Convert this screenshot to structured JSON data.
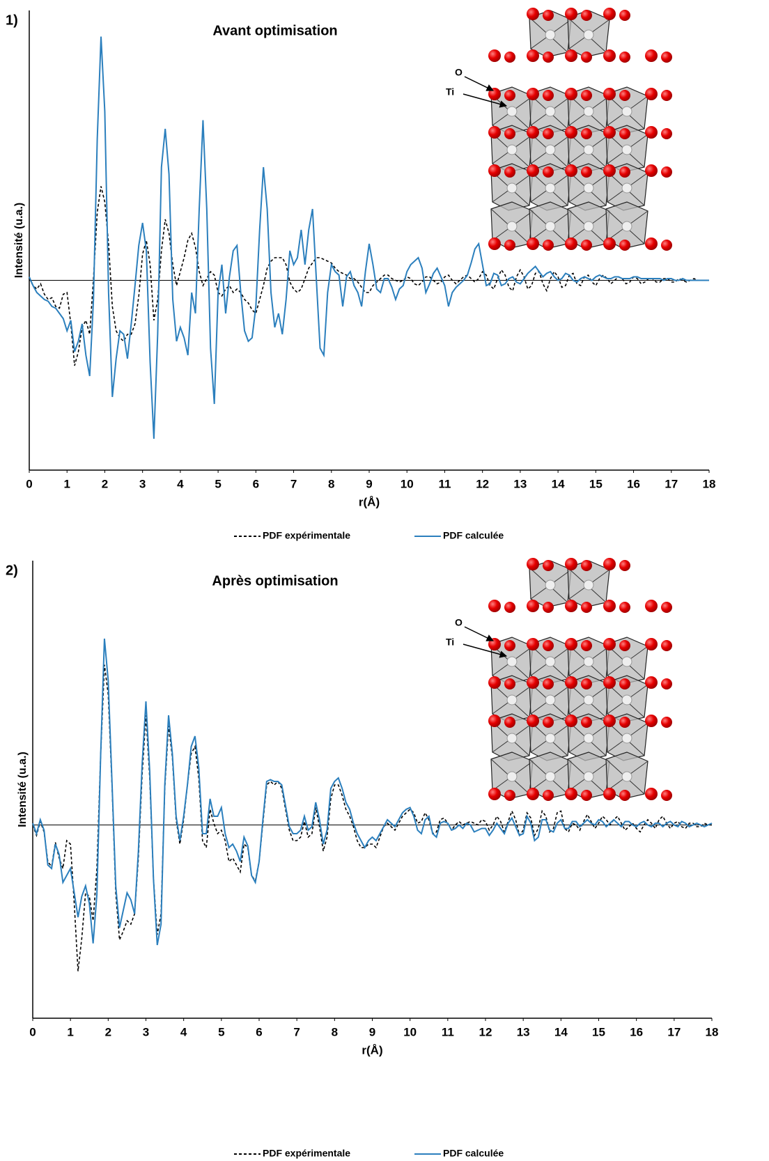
{
  "chart_data": [
    {
      "type": "line",
      "panel_label": "1)",
      "title": "Avant optimisation",
      "xlabel": "r(Å)",
      "ylabel": "Intensité (u.a.)",
      "inset_labels": [
        "O",
        "Ti"
      ],
      "xlim": [
        0,
        18
      ],
      "xticks": [
        0,
        1,
        2,
        3,
        4,
        5,
        6,
        7,
        8,
        9,
        10,
        11,
        12,
        13,
        14,
        15,
        16,
        17,
        18
      ],
      "ylim": [
        -10.9,
        15.3
      ],
      "x": [
        0,
        0.1,
        0.2,
        0.3,
        0.4,
        0.5,
        0.6,
        0.7,
        0.8,
        0.9,
        1,
        1.1,
        1.2,
        1.3,
        1.4,
        1.5,
        1.6,
        1.7,
        1.8,
        1.9,
        2,
        2.1,
        2.2,
        2.3,
        2.4,
        2.5,
        2.6,
        2.7,
        2.8,
        2.9,
        3,
        3.1,
        3.2,
        3.3,
        3.4,
        3.5,
        3.6,
        3.7,
        3.8,
        3.9,
        4,
        4.1,
        4.2,
        4.3,
        4.4,
        4.5,
        4.6,
        4.7,
        4.8,
        4.9,
        5,
        5.1,
        5.2,
        5.3,
        5.4,
        5.5,
        5.6,
        5.7,
        5.8,
        5.9,
        6,
        6.1,
        6.2,
        6.3,
        6.4,
        6.5,
        6.6,
        6.7,
        6.8,
        6.9,
        7,
        7.1,
        7.2,
        7.3,
        7.4,
        7.5,
        7.6,
        7.7,
        7.8,
        7.9,
        8,
        8.1,
        8.2,
        8.3,
        8.4,
        8.5,
        8.6,
        8.7,
        8.8,
        8.9,
        9,
        9.1,
        9.2,
        9.3,
        9.4,
        9.5,
        9.6,
        9.7,
        9.8,
        9.9,
        10,
        10.1,
        10.2,
        10.3,
        10.4,
        10.5,
        10.6,
        10.7,
        10.8,
        10.9,
        11,
        11.1,
        11.2,
        11.3,
        11.4,
        11.5,
        11.6,
        11.7,
        11.8,
        11.9,
        12,
        12.1,
        12.2,
        12.3,
        12.4,
        12.5,
        12.6,
        12.7,
        12.8,
        12.9,
        13,
        13.1,
        13.2,
        13.3,
        13.4,
        13.5,
        13.6,
        13.7,
        13.8,
        13.9,
        14,
        14.1,
        14.2,
        14.3,
        14.4,
        14.5,
        14.6,
        14.7,
        14.8,
        14.9,
        15,
        15.1,
        15.2,
        15.3,
        15.4,
        15.5,
        15.6,
        15.7,
        15.8,
        15.9,
        16,
        16.1,
        16.2,
        16.3,
        16.4,
        16.5,
        16.6,
        16.7,
        16.8,
        16.9,
        17,
        17.1,
        17.2,
        17.3,
        17.4,
        17.5,
        17.6,
        17.7,
        17.8,
        17.9,
        18
      ],
      "series": [
        {
          "name": "PDF expérimentale",
          "color": "#000000",
          "line_style": "dashed",
          "values": [
            0.1,
            -0.3,
            -0.5,
            -0.2,
            -0.8,
            -1.1,
            -1.0,
            -1.5,
            -1.6,
            -0.8,
            -0.7,
            -2.5,
            -4.9,
            -4.1,
            -2.7,
            -2.3,
            -3.1,
            0.1,
            3.9,
            5.4,
            4.5,
            2.1,
            -1.5,
            -2.9,
            -3.3,
            -3.5,
            -3.1,
            -3.1,
            -2.5,
            -0.9,
            1.5,
            2.3,
            0.9,
            -2.3,
            -1.1,
            1.7,
            3.5,
            2.7,
            0.9,
            -0.3,
            0.5,
            1.3,
            2.3,
            2.7,
            1.9,
            0.5,
            -0.3,
            0.1,
            0.5,
            0.3,
            -0.7,
            -0.9,
            -0.5,
            -0.3,
            -0.7,
            -0.5,
            -0.7,
            -1.1,
            -1.3,
            -1.7,
            -1.9,
            -1.1,
            -0.3,
            0.7,
            1.1,
            1.3,
            1.3,
            1.3,
            0.9,
            -0.1,
            -0.5,
            -0.7,
            -0.5,
            0.1,
            0.7,
            1.0,
            1.3,
            1.3,
            1.2,
            1.1,
            1.0,
            0.7,
            0.5,
            0.4,
            0.3,
            0.1,
            0.1,
            -0.1,
            -0.4,
            -0.7,
            -0.7,
            -0.3,
            -0.1,
            0.1,
            0.3,
            0.3,
            0.1,
            0,
            -0.1,
            0,
            0.2,
            0.1,
            -0.2,
            -0.3,
            -0.1,
            0.2,
            0.2,
            0,
            -0.2,
            -0.1,
            0.2,
            0.3,
            0,
            -0.2,
            0,
            0.2,
            0.3,
            0.1,
            -0.1,
            0.1,
            0.5,
            0.3,
            -0.3,
            -0.5,
            0.1,
            0.6,
            0.3,
            -0.4,
            -0.6,
            0.2,
            0.6,
            0.2,
            -0.5,
            -0.3,
            0.4,
            0.5,
            -0.2,
            -0.6,
            0.1,
            0.5,
            0.2,
            -0.4,
            -0.3,
            0.3,
            0.4,
            -0.2,
            -0.3,
            0.2,
            0.3,
            -0.1,
            -0.3,
            0.1,
            0.3,
            0.1,
            -0.2,
            0,
            0.2,
            0.1,
            -0.2,
            -0.1,
            0.2,
            0.1,
            -0.2,
            -0.1,
            0.1,
            0.1,
            -0.1,
            -0.1,
            0.1,
            0.1,
            -0.1,
            -0.1,
            0.1,
            0,
            -0.1,
            0,
            0.1,
            0,
            0,
            0,
            0
          ]
        },
        {
          "name": "PDF calculée",
          "color": "#2b7fbd",
          "line_style": "solid",
          "values": [
            0.2,
            -0.3,
            -0.7,
            -0.9,
            -1.1,
            -1.2,
            -1.5,
            -1.6,
            -1.9,
            -2.2,
            -2.9,
            -2.3,
            -4.1,
            -3.5,
            -2.5,
            -4.3,
            -5.5,
            -1.1,
            8.1,
            14,
            9.7,
            -0.7,
            -6.7,
            -4.5,
            -2.9,
            -3.1,
            -4.5,
            -2.5,
            -0.3,
            2.0,
            3.3,
            1.7,
            -4.7,
            -9.1,
            -3.1,
            6.5,
            8.7,
            6.1,
            -1.1,
            -3.5,
            -2.7,
            -3.3,
            -4.3,
            -0.7,
            -1.9,
            4.1,
            9.2,
            4.1,
            -3.9,
            -7.1,
            -0.7,
            0.9,
            -1.9,
            0.2,
            1.7,
            2.0,
            -0.7,
            -2.9,
            -3.5,
            -3.3,
            -1.5,
            2.9,
            6.5,
            4.1,
            -0.7,
            -2.7,
            -1.9,
            -3.1,
            -1.1,
            1.7,
            0.9,
            1.3,
            2.9,
            0.9,
            2.9,
            4.1,
            0.1,
            -3.9,
            -4.3,
            -0.7,
            0.9,
            0.5,
            0.3,
            -1.5,
            0.2,
            0.5,
            -0.3,
            -0.7,
            -1.5,
            0.5,
            2.1,
            0.9,
            -0.5,
            -0.7,
            0.1,
            0.1,
            -0.4,
            -1.1,
            -0.5,
            -0.3,
            0.5,
            0.9,
            1.1,
            1.3,
            0.7,
            -0.7,
            -0.2,
            0.4,
            0.7,
            0.2,
            -0.3,
            -1.5,
            -0.7,
            -0.4,
            -0.2,
            0,
            0.3,
            1.0,
            1.8,
            2.1,
            0.9,
            -0.3,
            -0.2,
            0.4,
            0.3,
            -0.3,
            -0.2,
            0.1,
            0.2,
            -0.1,
            -0.2,
            0.1,
            0.4,
            0.6,
            0.8,
            0.5,
            0.2,
            0.4,
            0.5,
            0.2,
            0,
            0.1,
            0.4,
            0.3,
            0,
            -0.1,
            0.1,
            0.2,
            0.1,
            0,
            0.2,
            0.3,
            0.2,
            0.1,
            0.1,
            0.2,
            0.2,
            0.1,
            0.1,
            0.1,
            0.2,
            0.2,
            0.1,
            0.1,
            0.1,
            0.1,
            0.1,
            0.1,
            0,
            0.1,
            0.1,
            0,
            0,
            0.1,
            0,
            0,
            0,
            0,
            0,
            0,
            0
          ]
        }
      ]
    },
    {
      "type": "line",
      "panel_label": "2)",
      "title": "Après optimisation",
      "xlabel": "r(Å)",
      "ylabel": "Intensité (u.a.)",
      "inset_labels": [
        "O",
        "Ti"
      ],
      "xlim": [
        0,
        18
      ],
      "xticks": [
        0,
        1,
        2,
        3,
        4,
        5,
        6,
        7,
        8,
        9,
        10,
        11,
        12,
        13,
        14,
        15,
        16,
        17,
        18
      ],
      "ylim": [
        -11.1,
        14.9
      ],
      "x": [
        0,
        0.1,
        0.2,
        0.3,
        0.4,
        0.5,
        0.6,
        0.7,
        0.8,
        0.9,
        1,
        1.1,
        1.2,
        1.3,
        1.4,
        1.5,
        1.6,
        1.7,
        1.8,
        1.9,
        2,
        2.1,
        2.2,
        2.3,
        2.4,
        2.5,
        2.6,
        2.7,
        2.8,
        2.9,
        3,
        3.1,
        3.2,
        3.3,
        3.4,
        3.5,
        3.6,
        3.7,
        3.8,
        3.9,
        4,
        4.1,
        4.2,
        4.3,
        4.4,
        4.5,
        4.6,
        4.7,
        4.8,
        4.9,
        5,
        5.1,
        5.2,
        5.3,
        5.4,
        5.5,
        5.6,
        5.7,
        5.8,
        5.9,
        6,
        6.1,
        6.2,
        6.3,
        6.4,
        6.5,
        6.6,
        6.7,
        6.8,
        6.9,
        7,
        7.1,
        7.2,
        7.3,
        7.4,
        7.5,
        7.6,
        7.7,
        7.8,
        7.9,
        8,
        8.1,
        8.2,
        8.3,
        8.4,
        8.5,
        8.6,
        8.7,
        8.8,
        8.9,
        9,
        9.1,
        9.2,
        9.3,
        9.4,
        9.5,
        9.6,
        9.7,
        9.8,
        9.9,
        10,
        10.1,
        10.2,
        10.3,
        10.4,
        10.5,
        10.6,
        10.7,
        10.8,
        10.9,
        11,
        11.1,
        11.2,
        11.3,
        11.4,
        11.5,
        11.6,
        11.7,
        11.8,
        11.9,
        12,
        12.1,
        12.2,
        12.3,
        12.4,
        12.5,
        12.6,
        12.7,
        12.8,
        12.9,
        13,
        13.1,
        13.2,
        13.3,
        13.4,
        13.5,
        13.6,
        13.7,
        13.8,
        13.9,
        14,
        14.1,
        14.2,
        14.3,
        14.4,
        14.5,
        14.6,
        14.7,
        14.8,
        14.9,
        15,
        15.1,
        15.2,
        15.3,
        15.4,
        15.5,
        15.6,
        15.7,
        15.8,
        15.9,
        16,
        16.1,
        16.2,
        16.3,
        16.4,
        16.5,
        16.6,
        16.7,
        16.8,
        16.9,
        17,
        17.1,
        17.2,
        17.3,
        17.4,
        17.5,
        17.6,
        17.7,
        17.8,
        17.9,
        18
      ],
      "series": [
        {
          "name": "PDF expérimentale",
          "color": "#000000",
          "line_style": "dashed",
          "values": [
            0,
            -0.6,
            0.2,
            -0.4,
            -2.1,
            -2.4,
            -1.0,
            -1.9,
            -2.5,
            -0.9,
            -1.1,
            -4.5,
            -8.4,
            -6.5,
            -3.9,
            -4.1,
            -5.5,
            -2.5,
            4,
            9.2,
            7.5,
            2.3,
            -3.9,
            -6.6,
            -6.1,
            -5.5,
            -5.7,
            -5.1,
            -1.9,
            2.9,
            6.3,
            2.7,
            -3.1,
            -6.3,
            -5.1,
            2.1,
            5.7,
            3.9,
            0.3,
            -1.1,
            0.3,
            2.3,
            4.1,
            4.5,
            2.7,
            -0.9,
            -1.3,
            0.9,
            0.1,
            -0.5,
            -0.3,
            -0.9,
            -2.1,
            -1.9,
            -2.3,
            -2.7,
            -1.1,
            -1.3,
            -2.9,
            -3.2,
            -2.1,
            0.1,
            2.3,
            2.5,
            2.3,
            2.5,
            2.1,
            0.9,
            -0.3,
            -0.9,
            -0.9,
            -0.7,
            0.2,
            -0.7,
            -0.5,
            1.0,
            -0.1,
            -1.5,
            -0.7,
            1.5,
            2.3,
            2.3,
            1.7,
            0.9,
            0.5,
            -0.1,
            -0.9,
            -1.3,
            -1.3,
            -1.1,
            -1.1,
            -1.3,
            -0.7,
            -0.1,
            0.1,
            -0.1,
            -0.3,
            0.1,
            0.5,
            0.7,
            0.9,
            0.7,
            0.1,
            0.2,
            0.7,
            0.3,
            -0.5,
            -0.4,
            0.3,
            0.4,
            0.1,
            -0.3,
            0,
            0.2,
            0,
            0.1,
            0.2,
            0.1,
            0,
            0.3,
            0.2,
            -0.3,
            0,
            0.5,
            0.2,
            -0.4,
            0.2,
            0.8,
            0.3,
            -0.6,
            -0.3,
            0.7,
            0.4,
            -0.6,
            -0.2,
            0.8,
            0.5,
            -0.4,
            -0.2,
            0.7,
            0.8,
            -0.2,
            -0.4,
            0.1,
            0,
            -0.3,
            0.2,
            0.6,
            0.2,
            -0.2,
            0.1,
            0.5,
            0.3,
            0,
            0.3,
            0.5,
            0.1,
            -0.3,
            -0.1,
            0.1,
            -0.2,
            -0.4,
            0,
            0.3,
            0.1,
            -0.2,
            0.3,
            0.5,
            0.1,
            -0.2,
            0.1,
            0.2,
            -0.1,
            -0.2,
            0.1,
            0.1,
            -0.1,
            -0.1,
            0.1,
            0,
            0
          ]
        },
        {
          "name": "PDF calculée",
          "color": "#2b7fbd",
          "line_style": "solid",
          "values": [
            0.1,
            -0.5,
            0.3,
            -0.3,
            -2.3,
            -2.5,
            -1.1,
            -1.7,
            -3.3,
            -2.9,
            -2.5,
            -3.9,
            -5.3,
            -4.1,
            -3.5,
            -4.5,
            -6.8,
            -4,
            4,
            10.7,
            8.3,
            2.5,
            -3.5,
            -5.9,
            -4.9,
            -3.9,
            -4.3,
            -5.1,
            -1.5,
            3.5,
            7.1,
            3.1,
            -3.1,
            -6.9,
            -5.7,
            2.3,
            6.3,
            4.1,
            0.5,
            -0.9,
            0.5,
            2.3,
            4.5,
            5.1,
            3.3,
            -0.5,
            -0.5,
            1.5,
            0.5,
            0.5,
            1.0,
            -0.5,
            -1.3,
            -1.1,
            -1.5,
            -2.1,
            -0.7,
            -1.2,
            -2.9,
            -3.3,
            -2.1,
            0.3,
            2.5,
            2.6,
            2.5,
            2.5,
            2.3,
            1.1,
            -0.1,
            -0.5,
            -0.5,
            -0.3,
            0.5,
            -0.3,
            -0.1,
            1.3,
            0.3,
            -1.1,
            -0.3,
            2.1,
            2.5,
            2.7,
            2.1,
            1.3,
            0.9,
            0.1,
            -0.5,
            -0.9,
            -1.3,
            -0.9,
            -0.7,
            -0.9,
            -0.5,
            -0.1,
            0.3,
            0.1,
            -0.1,
            0.3,
            0.7,
            0.9,
            1.0,
            0.5,
            -0.3,
            -0.5,
            0.3,
            0.5,
            -0.5,
            -0.7,
            0.1,
            0.2,
            0.1,
            -0.3,
            -0.2,
            0,
            -0.2,
            0.1,
            0,
            -0.4,
            -0.3,
            -0.2,
            -0.2,
            -0.6,
            -0.3,
            0.1,
            -0.2,
            -0.5,
            0.1,
            0.4,
            -0.1,
            -0.6,
            -0.5,
            0.5,
            0.1,
            -0.9,
            -0.7,
            0.3,
            0.3,
            -0.3,
            -0.4,
            0.1,
            0.3,
            -0.2,
            -0.2,
            0.2,
            0.2,
            -0.1,
            0.1,
            0.3,
            0.1,
            0,
            0.3,
            0.2,
            -0.1,
            0.1,
            0.3,
            0.1,
            -0.1,
            0.2,
            0.2,
            0,
            -0.1,
            0.1,
            0.2,
            0,
            -0.1,
            0.1,
            0.1,
            -0.1,
            0.1,
            0.2,
            0,
            -0.1,
            0.2,
            0.1,
            -0.1,
            0,
            0.1,
            0,
            -0.1,
            0,
            0.1
          ]
        }
      ]
    }
  ]
}
